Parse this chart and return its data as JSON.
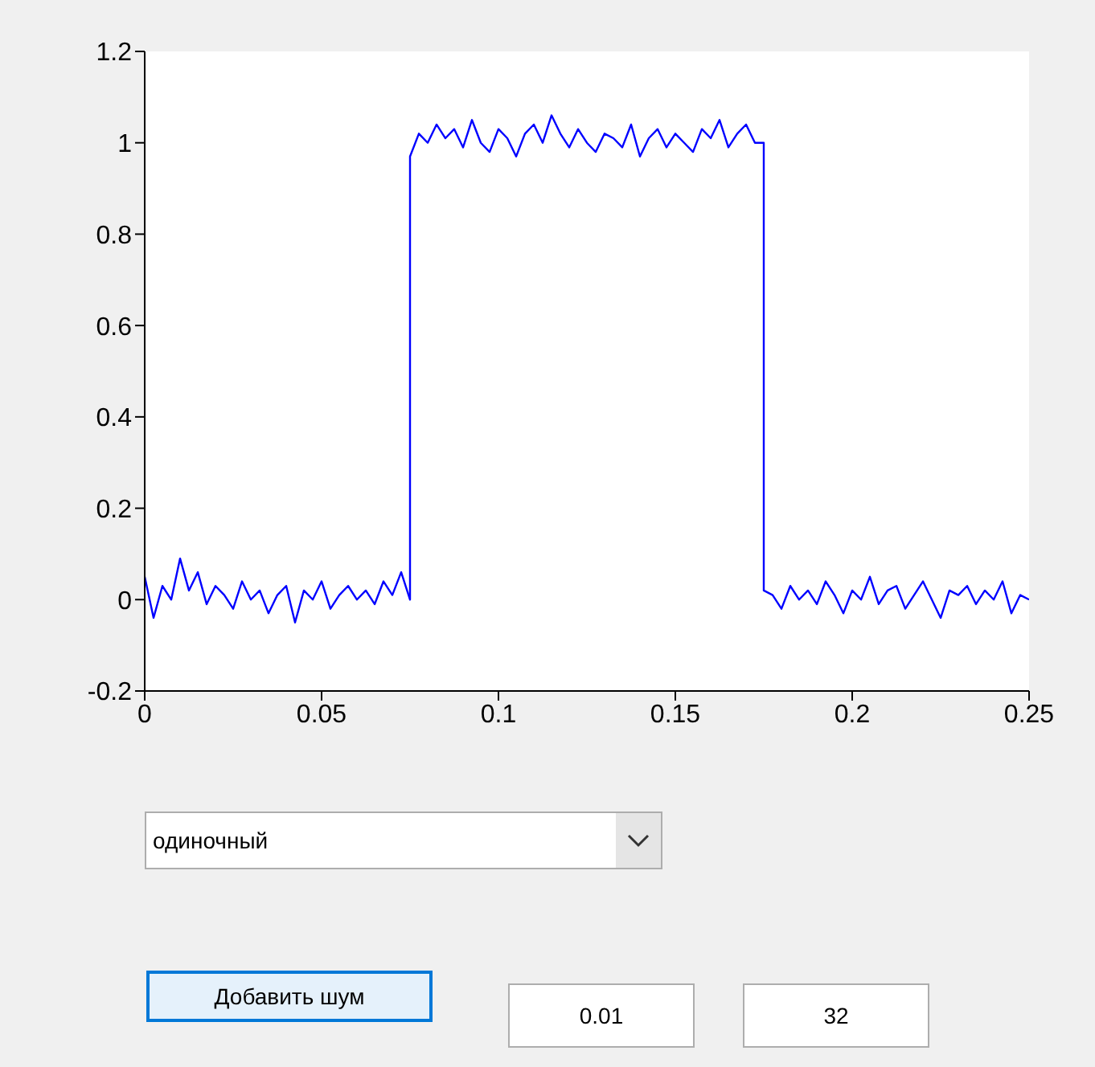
{
  "chart_data": {
    "type": "line",
    "xlim": [
      0,
      0.25
    ],
    "xticks": [
      0,
      0.05,
      0.1,
      0.15,
      0.2,
      0.25
    ],
    "ylim": [
      -0.2,
      1.2
    ],
    "yticks": [
      -0.2,
      0,
      0.2,
      0.4,
      0.6,
      0.8,
      1,
      1.2
    ],
    "grid": false,
    "marker": "none",
    "line_style": "solid",
    "series": [
      {
        "color": "#0000ff",
        "x": [
          0,
          0.0025,
          0.005,
          0.0075,
          0.01,
          0.0125,
          0.015,
          0.0175,
          0.02,
          0.0225,
          0.025,
          0.0275,
          0.03,
          0.0325,
          0.035,
          0.0375,
          0.04,
          0.0425,
          0.045,
          0.0475,
          0.05,
          0.0525,
          0.055,
          0.0575,
          0.06,
          0.0625,
          0.065,
          0.0675,
          0.07,
          0.0725,
          0.075,
          0.075,
          0.0775,
          0.08,
          0.0825,
          0.085,
          0.0875,
          0.09,
          0.0925,
          0.095,
          0.0975,
          0.1,
          0.1025,
          0.105,
          0.1075,
          0.11,
          0.1125,
          0.115,
          0.1175,
          0.12,
          0.1225,
          0.125,
          0.1275,
          0.13,
          0.1325,
          0.135,
          0.1375,
          0.14,
          0.1425,
          0.145,
          0.1475,
          0.15,
          0.1525,
          0.155,
          0.1575,
          0.16,
          0.1625,
          0.165,
          0.1675,
          0.17,
          0.1725,
          0.175,
          0.175,
          0.1775,
          0.18,
          0.1825,
          0.185,
          0.1875,
          0.19,
          0.1925,
          0.195,
          0.1975,
          0.2,
          0.2025,
          0.205,
          0.2075,
          0.21,
          0.2125,
          0.215,
          0.2175,
          0.22,
          0.2225,
          0.225,
          0.2275,
          0.23,
          0.2325,
          0.235,
          0.2375,
          0.24,
          0.2425,
          0.245,
          0.2475,
          0.25
        ],
        "values": [
          0.05,
          -0.04,
          0.03,
          0.0,
          0.09,
          0.02,
          0.06,
          -0.01,
          0.03,
          0.01,
          -0.02,
          0.04,
          0.0,
          0.02,
          -0.03,
          0.01,
          0.03,
          -0.05,
          0.02,
          0.0,
          0.04,
          -0.02,
          0.01,
          0.03,
          0.0,
          0.02,
          -0.01,
          0.04,
          0.01,
          0.06,
          0.0,
          0.97,
          1.02,
          1.0,
          1.04,
          1.01,
          1.03,
          0.99,
          1.05,
          1.0,
          0.98,
          1.03,
          1.01,
          0.97,
          1.02,
          1.04,
          1.0,
          1.06,
          1.02,
          0.99,
          1.03,
          1.0,
          0.98,
          1.02,
          1.01,
          0.99,
          1.04,
          0.97,
          1.01,
          1.03,
          0.99,
          1.02,
          1.0,
          0.98,
          1.03,
          1.01,
          1.05,
          0.99,
          1.02,
          1.04,
          1.0,
          1.0,
          0.02,
          0.01,
          -0.02,
          0.03,
          0.0,
          0.02,
          -0.01,
          0.04,
          0.01,
          -0.03,
          0.02,
          0.0,
          0.05,
          -0.01,
          0.02,
          0.03,
          -0.02,
          0.01,
          0.04,
          0.0,
          -0.04,
          0.02,
          0.01,
          0.03,
          -0.01,
          0.02,
          0.0,
          0.04,
          -0.03,
          0.01,
          0.0
        ]
      }
    ],
    "annotations": [
      "одиночный",
      "Добавить шум",
      "0.01",
      "32"
    ]
  }
}
